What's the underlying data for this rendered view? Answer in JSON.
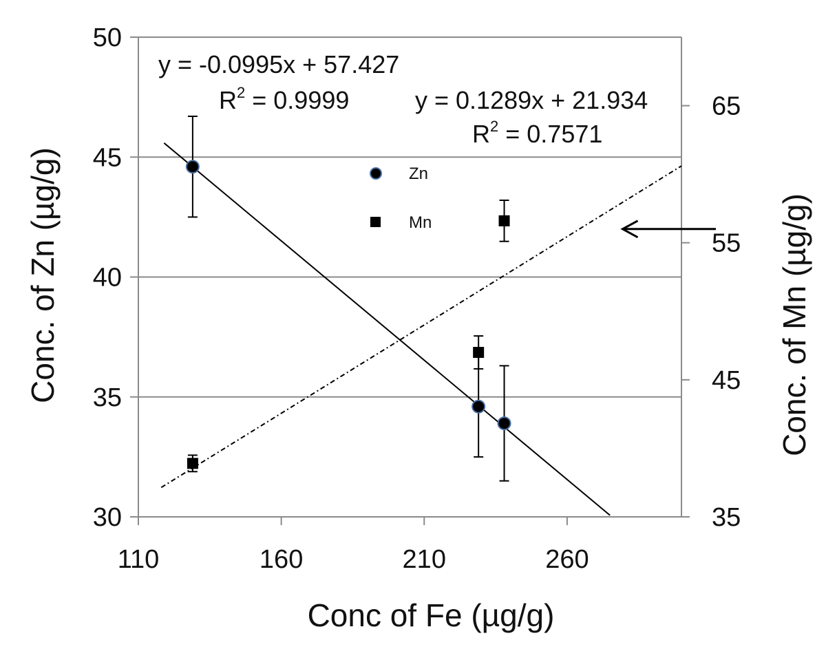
{
  "chart_data": {
    "type": "scatter",
    "x_axis": {
      "label": "Conc of Fe (µg/g)",
      "range": [
        110,
        300
      ],
      "ticks": [
        110,
        160,
        210,
        260
      ],
      "tick_labels": [
        "110",
        "160",
        "210",
        "260"
      ]
    },
    "y_axis_left": {
      "label": "Conc. of Zn (µg/g)",
      "range": [
        30,
        50
      ],
      "ticks": [
        30,
        35,
        40,
        45,
        50
      ],
      "tick_labels": [
        "30",
        "35",
        "40",
        "45",
        "50"
      ]
    },
    "y_axis_right": {
      "label": "Conc. of Mn (µg/g)",
      "range": [
        35,
        70
      ],
      "ticks": [
        35,
        45,
        55,
        65
      ],
      "tick_labels": [
        "35",
        "45",
        "55",
        "65"
      ]
    },
    "grid": true,
    "legend": {
      "placement": "top-center",
      "items": [
        {
          "name": "Zn",
          "marker": "circle"
        },
        {
          "name": "Mn",
          "marker": "square"
        }
      ]
    },
    "series": [
      {
        "name": "Zn",
        "axis": "left",
        "marker": "circle",
        "marker_color": "#000000",
        "marker_edge": "#4a6fa5",
        "points": [
          {
            "x": 129,
            "y": 44.6,
            "err": 2.1
          },
          {
            "x": 229,
            "y": 34.6,
            "err": 2.1
          },
          {
            "x": 238,
            "y": 33.9,
            "err": 2.4
          }
        ],
        "trendline": {
          "slope": -0.0995,
          "intercept": 57.427,
          "x_range": [
            119,
            275
          ],
          "style": "solid"
        }
      },
      {
        "name": "Mn",
        "axis": "right",
        "marker": "square",
        "marker_color": "#000000",
        "points": [
          {
            "x": 129,
            "y": 38.9,
            "err": 0.6
          },
          {
            "x": 229,
            "y": 47.0,
            "err": 1.2
          },
          {
            "x": 238,
            "y": 56.6,
            "err": 1.5
          }
        ],
        "trendline": {
          "slope": 0.1289,
          "intercept": 21.934,
          "x_range": [
            118,
            300
          ],
          "style": "dash-dot"
        }
      }
    ],
    "annotations": {
      "zn_equation": "y = -0.0995x + 57.427",
      "zn_r2_prefix": "R",
      "zn_r2_exp": "2",
      "zn_r2_value": " = 0.9999",
      "mn_equation": "y = 0.1289x + 21.934",
      "mn_r2_prefix": "R",
      "mn_r2_exp": "2",
      "mn_r2_value": " = 0.7571"
    },
    "arrow": {
      "x_from": 300,
      "x_to": 277,
      "y_right": 56.0
    }
  }
}
